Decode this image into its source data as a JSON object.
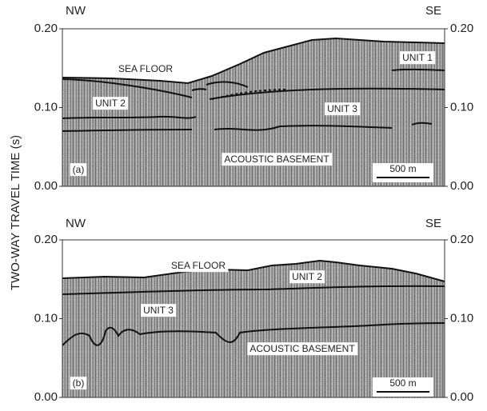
{
  "axis_label": "TWO-WAY TRAVEL TIME (s)",
  "panels": [
    {
      "tag": "(a)",
      "left": "NW",
      "right": "SE",
      "ylim": [
        0,
        0.2
      ],
      "yticks": [
        {
          "value": 0,
          "label": "0.00"
        },
        {
          "value": 0.1,
          "label": "0.10"
        },
        {
          "value": 0.2,
          "label": "0.20"
        }
      ],
      "labels": [
        "SEA FLOOR",
        "UNIT 1",
        "UNIT 2",
        "UNIT 3",
        "ACOUSTIC BASEMENT"
      ],
      "scale": "500 m"
    },
    {
      "tag": "(b)",
      "left": "NW",
      "right": "SE",
      "ylim": [
        0,
        0.2
      ],
      "yticks": [
        {
          "value": 0,
          "label": "0.00"
        },
        {
          "value": 0.1,
          "label": "0.10"
        },
        {
          "value": 0.2,
          "label": "0.20"
        }
      ],
      "labels": [
        "SEA FLOOR",
        "UNIT 2",
        "UNIT 3",
        "ACOUSTIC BASEMENT"
      ],
      "scale": "500 m"
    }
  ]
}
